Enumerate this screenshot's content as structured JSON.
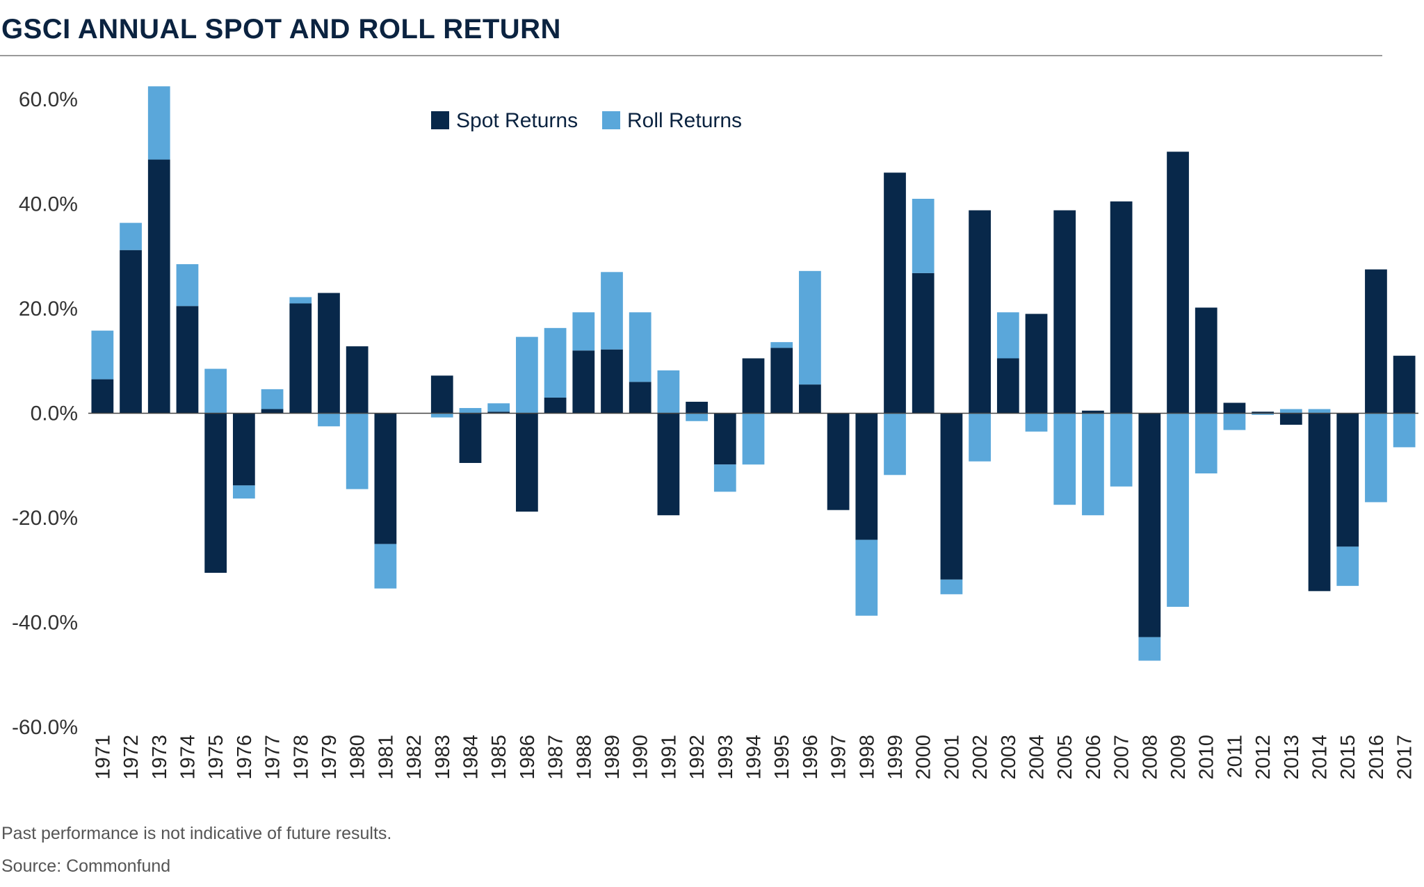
{
  "title": "GSCI ANNUAL SPOT AND ROLL RETURN",
  "footnote": "Past performance is not indicative of future results.",
  "source": "Source:  Commonfund",
  "colors": {
    "spot": "#08284a",
    "roll": "#5aa7da",
    "axis": "#444444",
    "rule": "#9a9a9a"
  },
  "chart_data": {
    "type": "bar",
    "stacked": true,
    "title": "GSCI ANNUAL SPOT AND ROLL RETURN",
    "xlabel": "",
    "ylabel": "",
    "ylim": [
      -60,
      60
    ],
    "yticks": [
      "60.0%",
      "40.0%",
      "20.0%",
      "0.0%",
      "-20.0%",
      "-40.0%",
      "-60.0%"
    ],
    "ytick_values": [
      60,
      40,
      20,
      0,
      -20,
      -40,
      -60
    ],
    "legend_position": "top-center",
    "grid": false,
    "categories": [
      "1971",
      "1972",
      "1973",
      "1974",
      "1975",
      "1976",
      "1977",
      "1978",
      "1979",
      "1980",
      "1981",
      "1982",
      "1983",
      "1984",
      "1985",
      "1986",
      "1987",
      "1988",
      "1989",
      "1990",
      "1991",
      "1992",
      "1993",
      "1994",
      "1995",
      "1996",
      "1997",
      "1998",
      "1999",
      "2000",
      "2001",
      "2002",
      "2003",
      "2004",
      "2005",
      "2006",
      "2007",
      "2008",
      "2009",
      "2010",
      "2011",
      "2012",
      "2013",
      "2014",
      "2015",
      "2016",
      "2017"
    ],
    "series": [
      {
        "name": "Spot Returns",
        "values": [
          6.5,
          31.2,
          48.5,
          20.5,
          -30.5,
          -13.8,
          0.8,
          21.0,
          23.0,
          12.8,
          -25.0,
          0,
          7.2,
          -9.5,
          0.3,
          -18.8,
          3.0,
          12.0,
          12.2,
          6.0,
          -19.5,
          2.2,
          -9.8,
          10.5,
          12.5,
          5.5,
          -18.5,
          -24.2,
          46.0,
          26.8,
          -31.8,
          38.8,
          10.5,
          19.0,
          38.8,
          0.5,
          40.5,
          -42.8,
          50.0,
          20.2,
          2.0,
          0.3,
          -2.2,
          -34.0,
          -25.5,
          27.5,
          11.0
        ]
      },
      {
        "name": "Roll Returns",
        "values": [
          9.3,
          5.2,
          14.0,
          8.0,
          8.5,
          -2.5,
          3.8,
          1.2,
          -2.5,
          -14.5,
          -8.5,
          0,
          -0.8,
          1.0,
          1.6,
          14.6,
          13.3,
          7.3,
          14.8,
          13.3,
          8.2,
          -1.5,
          -5.2,
          -9.8,
          1.1,
          21.7,
          0,
          -14.5,
          -11.8,
          14.2,
          -2.8,
          -9.2,
          8.8,
          -3.5,
          -17.5,
          -19.5,
          -14.0,
          -4.5,
          -37.0,
          -11.5,
          -3.2,
          -0.3,
          0.8,
          0.8,
          -7.5,
          -17.0,
          -6.5
        ]
      }
    ]
  }
}
